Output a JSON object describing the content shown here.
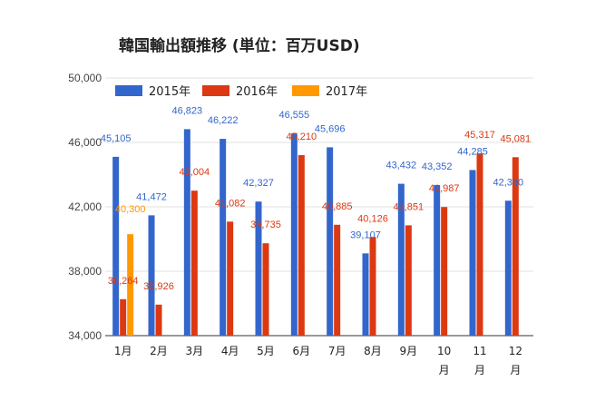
{
  "chart_data": {
    "type": "bar",
    "title": "韓国輸出額推移 (単位：百万USD)",
    "xlabel": "",
    "ylabel": "",
    "ylim": [
      34000,
      50000
    ],
    "yticks": [
      34000,
      38000,
      42000,
      46000,
      50000
    ],
    "ytick_labels": [
      "34,000",
      "38,000",
      "42,000",
      "46,000",
      "50,000"
    ],
    "grid": true,
    "legend_position": "top-left",
    "categories": [
      [
        "1月"
      ],
      [
        "2月"
      ],
      [
        "3月"
      ],
      [
        "4月"
      ],
      [
        "5月"
      ],
      [
        "6月"
      ],
      [
        "7月"
      ],
      [
        "8月"
      ],
      [
        "9月"
      ],
      [
        "10",
        "月"
      ],
      [
        "11",
        "月"
      ],
      [
        "12",
        "月"
      ]
    ],
    "series": [
      {
        "name": "2015年",
        "color": "#3366cc",
        "values": [
          45105,
          41472,
          46823,
          46222,
          42327,
          46555,
          45696,
          39107,
          43432,
          43352,
          44285,
          42380
        ],
        "labels": [
          "45,105",
          "41,472",
          "46,823",
          "46,222",
          "42,327",
          "46,555",
          "45,696",
          "39,107",
          "43,432",
          "43,352",
          "44,285",
          "42,380"
        ]
      },
      {
        "name": "2016年",
        "color": "#dc3912",
        "values": [
          36264,
          35926,
          43004,
          41082,
          39735,
          45210,
          40885,
          40126,
          40851,
          41987,
          45317,
          45081
        ],
        "labels": [
          "36,264",
          "35,926",
          "43,004",
          "41,082",
          "39,735",
          "45,210",
          "40,885",
          "40,126",
          "40,851",
          "41,987",
          "45,317",
          "45,081"
        ]
      },
      {
        "name": "2017年",
        "color": "#ff9900",
        "values": [
          40300,
          null,
          null,
          null,
          null,
          null,
          null,
          null,
          null,
          null,
          null,
          null
        ],
        "labels": [
          "40,300",
          null,
          null,
          null,
          null,
          null,
          null,
          null,
          null,
          null,
          null,
          null
        ]
      }
    ]
  }
}
